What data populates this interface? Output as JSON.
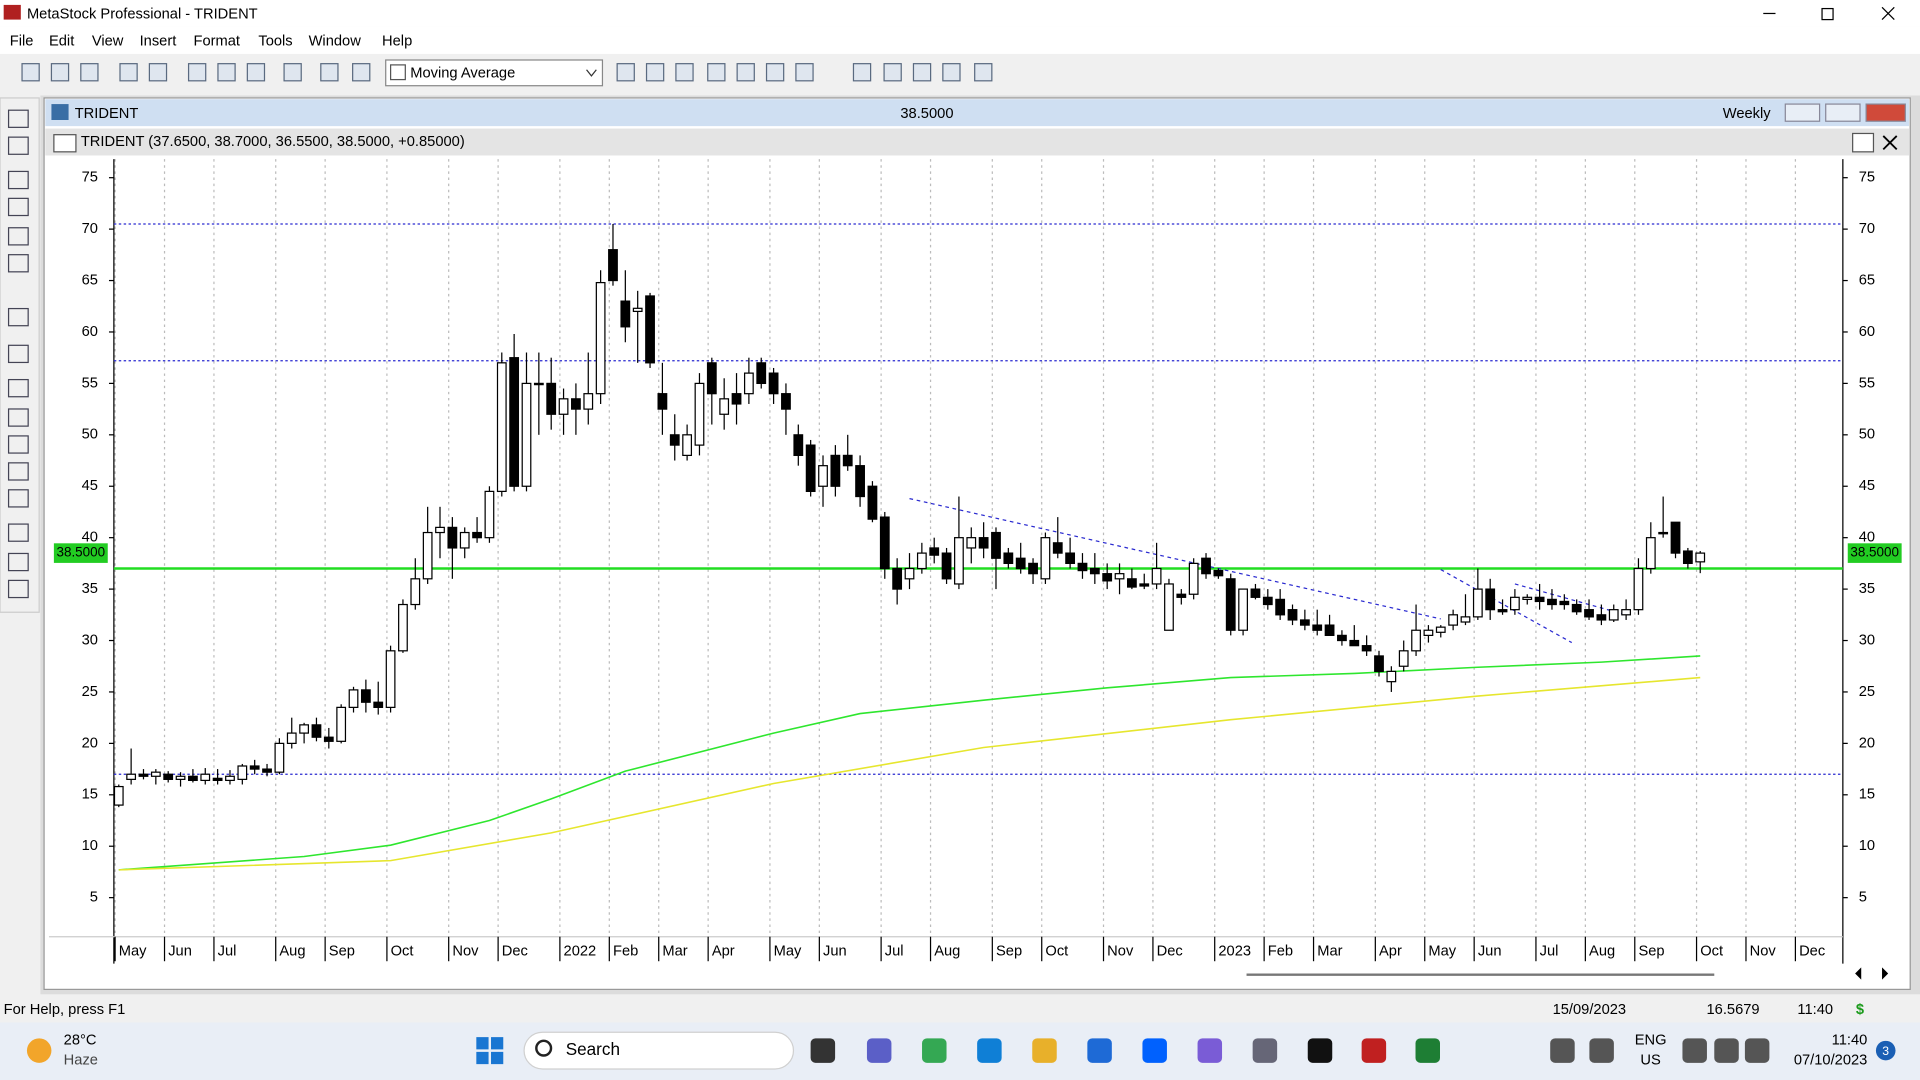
{
  "window": {
    "title": "MetaStock Professional - TRIDENT",
    "menu": [
      "File",
      "Edit",
      "View",
      "Insert",
      "Format",
      "Tools",
      "Window",
      "Help"
    ],
    "indicator_select": "Moving Average"
  },
  "chart_window": {
    "title": "TRIDENT",
    "price": "38.5000",
    "period": "Weekly",
    "header": "TRIDENT (37.6500, 38.7000, 36.5500, 38.5000, +0.85000)"
  },
  "chart_data": {
    "type": "candlestick",
    "categories": [
      "May",
      null,
      null,
      null,
      "Jun",
      null,
      null,
      null,
      "Jul",
      null,
      null,
      null,
      null,
      "Aug",
      null,
      null,
      null,
      "Sep",
      null,
      null,
      null,
      null,
      "Oct",
      null,
      null,
      null,
      null,
      "Nov",
      null,
      null,
      null,
      "Dec",
      null,
      null,
      null,
      null,
      "2022",
      null,
      null,
      null,
      "Feb",
      null,
      null,
      null,
      "Mar",
      null,
      null,
      null,
      "Apr",
      null,
      null,
      null,
      null,
      "May",
      null,
      null,
      null,
      "Jun",
      null,
      null,
      null,
      null,
      "Jul",
      null,
      null,
      null,
      "Aug",
      null,
      null,
      null,
      null,
      "Sep",
      null,
      null,
      null,
      "Oct",
      null,
      null,
      null,
      null,
      "Nov",
      null,
      null,
      null,
      "Dec",
      null,
      null,
      null,
      null,
      "2023",
      null,
      null,
      null,
      "Feb",
      null,
      null,
      null,
      "Mar",
      null,
      null,
      null,
      null,
      "Apr",
      null,
      null,
      null,
      "May",
      null,
      null,
      null,
      "Jun",
      null,
      null,
      null,
      null,
      "Jul",
      null,
      null,
      null,
      "Aug",
      null,
      null,
      null,
      "Sep",
      null,
      null,
      null,
      null,
      "Oct"
    ],
    "open": [
      14,
      16.5,
      17,
      16.8,
      17,
      16.5,
      16.8,
      16.4,
      16.6,
      16.4,
      16.5,
      17.8,
      17.5,
      17.2,
      20,
      21,
      21.8,
      20.6,
      20.2,
      23.5,
      25.2,
      24,
      23.5,
      29,
      33.5,
      36,
      40.5,
      41,
      39,
      40.5,
      40,
      44.5,
      57.5,
      45,
      55,
      55,
      52,
      53.5,
      52.5,
      54,
      68,
      63,
      62,
      63.5,
      54,
      50,
      48,
      49,
      57,
      52,
      54,
      54,
      57,
      56,
      54,
      50,
      49,
      45,
      48,
      48,
      47,
      45,
      42,
      37,
      36,
      37,
      39,
      38.5,
      35.5,
      39,
      40,
      40.5,
      38.5,
      38,
      37.5,
      36,
      39.5,
      38.5,
      37.5,
      37,
      36.5,
      36,
      36,
      35.5,
      35.5,
      31,
      34.5,
      34.5,
      38,
      36.8,
      36,
      31,
      35,
      34.2,
      34,
      33,
      32,
      31.5,
      31.5,
      30.5,
      30,
      29.5,
      28.5,
      26,
      27.5,
      29,
      30.5,
      30.8,
      31.5,
      31.8,
      32.3,
      35,
      33,
      33,
      34,
      34.2,
      34,
      33.8,
      33.5,
      33,
      32.5,
      32,
      32.5,
      33,
      37,
      40.5,
      41.5,
      38.7,
      37.65
    ],
    "high": [
      16,
      19.5,
      17.5,
      17.5,
      17.3,
      17.2,
      17.5,
      17.6,
      17.5,
      17.4,
      18,
      18.4,
      18,
      20.5,
      22.5,
      22,
      22.5,
      21.5,
      23.8,
      25.5,
      26.2,
      26,
      29.5,
      34,
      38,
      43,
      43,
      42,
      41,
      42,
      45,
      58,
      59.8,
      58,
      58,
      57.5,
      54.5,
      55,
      58,
      66,
      70.5,
      66,
      64,
      63.8,
      57,
      52,
      51,
      56,
      57.5,
      55.5,
      56,
      57.5,
      57.5,
      56.5,
      55,
      51,
      49.5,
      48,
      49,
      50,
      48,
      45.5,
      42.5,
      38,
      38.5,
      39.5,
      40,
      39,
      44,
      41,
      41.5,
      41,
      39,
      39.5,
      38,
      40.5,
      42,
      40,
      38.5,
      38.5,
      37.5,
      37.5,
      37,
      36.5,
      39.5,
      36,
      35,
      38,
      38.5,
      37,
      36.5,
      35,
      35.5,
      35,
      35,
      33.5,
      33,
      33,
      32.5,
      31,
      31.5,
      30.5,
      29,
      27.5,
      30,
      33.5,
      31.5,
      31.5,
      33,
      34.5,
      37,
      36,
      34,
      35,
      34.5,
      35.5,
      35,
      34.5,
      34,
      34,
      33.5,
      33.5,
      34,
      38,
      41.5,
      44,
      41.5,
      39,
      38.7
    ],
    "low": [
      13.8,
      16,
      16.5,
      16,
      16.2,
      15.8,
      16.2,
      16,
      16,
      16,
      16,
      17,
      16.8,
      17,
      19.5,
      20,
      20.2,
      19.5,
      20,
      23,
      23,
      22.8,
      23,
      28.8,
      33,
      35.5,
      38,
      36,
      38,
      39.5,
      39.5,
      44,
      44.5,
      44.5,
      50,
      50.5,
      50,
      50,
      51,
      53,
      64.5,
      59,
      57,
      56.5,
      50,
      47.5,
      47.5,
      48,
      51,
      50.5,
      51,
      53,
      54.5,
      53,
      50,
      47,
      44,
      43,
      44,
      46.5,
      43,
      41.5,
      36,
      33.5,
      35,
      36.5,
      37.5,
      35.5,
      35,
      37.5,
      38,
      35,
      37,
      36.5,
      35.5,
      35.5,
      38,
      37,
      36,
      35.5,
      35,
      34.5,
      35,
      35,
      35,
      31,
      33.5,
      34,
      36,
      36,
      30.5,
      30.5,
      34,
      33,
      32,
      31.5,
      31,
      30.5,
      30.5,
      29.5,
      29.5,
      28.5,
      26.5,
      25,
      27,
      28.5,
      29.8,
      30.3,
      31,
      31.5,
      32,
      32,
      32.5,
      32.5,
      33.5,
      33,
      33,
      33,
      32.5,
      32,
      31.5,
      31.8,
      32,
      32.5,
      36.5,
      40,
      38,
      37,
      36.55
    ],
    "close": [
      15.8,
      17,
      16.8,
      17.2,
      16.5,
      16.8,
      16.4,
      17,
      16.4,
      16.8,
      17.8,
      17.5,
      17.2,
      20,
      21,
      21.8,
      20.6,
      20.2,
      23.5,
      25.2,
      24,
      23.5,
      29,
      33.5,
      36,
      40.5,
      41,
      39,
      40.5,
      40,
      44.5,
      57,
      45,
      55,
      55,
      52,
      53.5,
      52.5,
      54,
      64.8,
      65,
      60.5,
      62.3,
      57,
      52.5,
      49,
      50,
      55,
      54,
      53.5,
      53,
      56,
      55,
      54,
      52.5,
      48,
      44.5,
      47,
      45,
      47,
      44,
      41.8,
      37,
      35,
      37,
      38.5,
      38.3,
      36,
      40,
      40,
      39,
      38,
      37.5,
      37,
      36.5,
      40,
      38.5,
      37.5,
      36.8,
      36.5,
      35.8,
      36.5,
      35.2,
      35.3,
      37,
      35.5,
      34.2,
      37.5,
      36.5,
      36.3,
      31,
      35,
      34.2,
      33.5,
      32.5,
      32,
      31.5,
      31,
      30.5,
      30,
      29.5,
      29,
      27,
      27,
      29,
      31,
      31,
      31.3,
      32.5,
      32.3,
      35,
      33,
      32.8,
      34.2,
      34.2,
      33.8,
      33.5,
      33.5,
      32.8,
      32.3,
      32,
      33,
      33,
      37,
      40,
      40.5,
      38.5,
      37.5,
      38.5
    ],
    "color_up": "#ffffff",
    "color_down": "#000000",
    "x_extra_labels": [
      "Nov",
      "Dec"
    ],
    "ylim": [
      1.2,
      76.8
    ],
    "yticks": [
      5,
      10,
      15,
      20,
      25,
      30,
      35,
      40,
      45,
      50,
      55,
      60,
      65,
      70,
      75
    ],
    "overlays": [
      {
        "color": "#2ee62e",
        "x": [
          0,
          15,
          22,
          30,
          35,
          41,
          53,
          60,
          70,
          80,
          90,
          100,
          110,
          120,
          128
        ],
        "values": [
          7.7,
          9,
          10.1,
          12.5,
          14.6,
          17.3,
          21,
          22.9,
          24.2,
          25.4,
          26.4,
          26.8,
          27.4,
          27.9,
          28.5
        ]
      },
      {
        "color": "#e6e62e",
        "x": [
          0,
          22,
          35,
          53,
          70,
          90,
          110,
          128
        ],
        "values": [
          7.7,
          8.6,
          11.3,
          16.1,
          19.6,
          22.3,
          24.6,
          26.4
        ]
      }
    ],
    "horizontal_lines": [
      {
        "value": 70.5,
        "color": "#2a2ad0"
      },
      {
        "value": 57.2,
        "color": "#2a2ad0"
      },
      {
        "value": 17,
        "color": "#2a2ad0"
      },
      {
        "value": 37,
        "color": "#22dd22"
      }
    ],
    "trendlines": [
      {
        "x": [
          64,
          107
        ],
        "values": [
          43.8,
          32.1
        ],
        "color": "#2a2ad0"
      },
      {
        "x": [
          107,
          117.6
        ],
        "values": [
          36.9,
          29.8
        ],
        "color": "#2a2ad0"
      },
      {
        "x": [
          113,
          122
        ],
        "values": [
          35.5,
          32.5
        ],
        "color": "#2a2ad0"
      }
    ],
    "last_price": {
      "value": 38.5,
      "label": "38.5000"
    }
  },
  "status_bar": {
    "help": "For Help, press F1",
    "date": "15/09/2023",
    "value": "16.5679",
    "time": "11:40",
    "currency": "$"
  },
  "taskbar": {
    "temperature": "28°C",
    "weather": "Haze",
    "search": "Search",
    "language": "ENG",
    "region": "US",
    "time": "11:40",
    "date": "07/10/2023",
    "notifications": "3"
  }
}
